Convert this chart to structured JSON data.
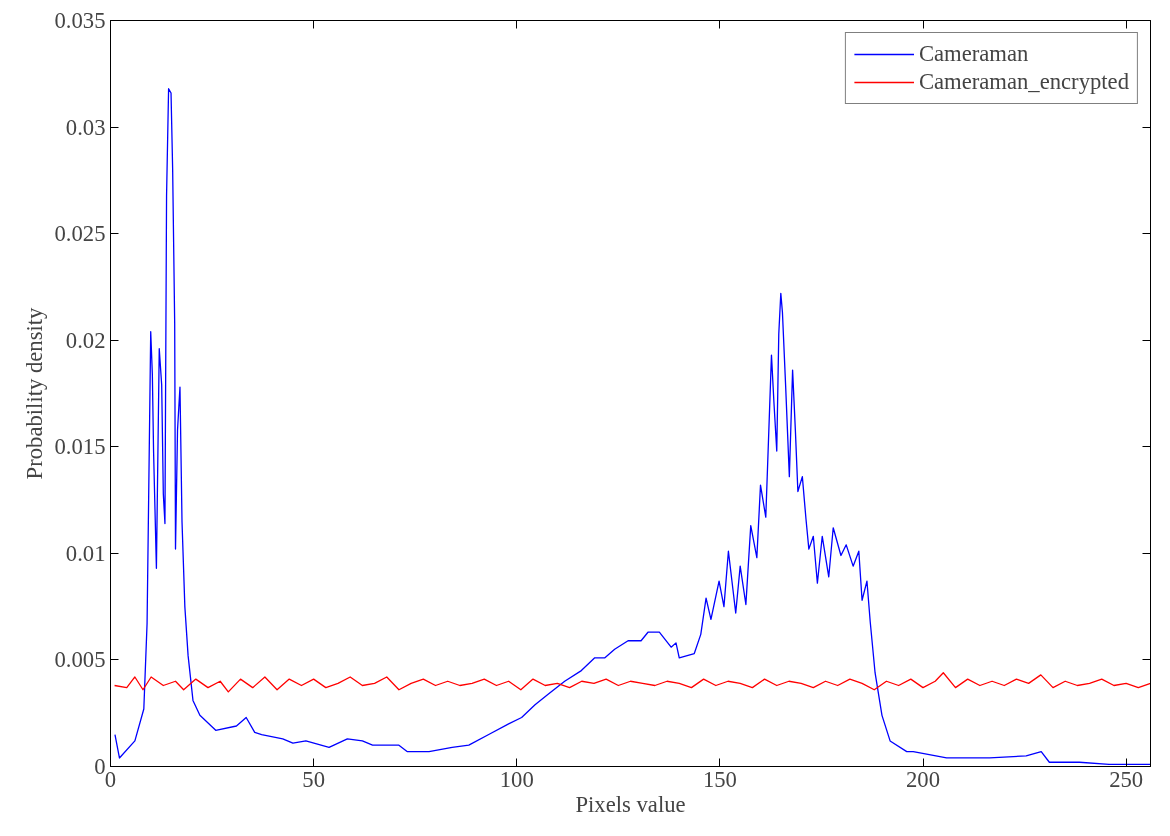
{
  "chart_data": {
    "type": "line",
    "xlabel": "Pixels value",
    "ylabel": "Probability density",
    "xlim": [
      0,
      256
    ],
    "ylim": [
      0,
      0.035
    ],
    "xticks": [
      0,
      50,
      100,
      150,
      200,
      250
    ],
    "yticks": [
      0,
      0.005,
      0.01,
      0.015,
      0.02,
      0.025,
      0.03,
      0.035
    ],
    "grid": false,
    "legend": "top right",
    "marker": "none",
    "line_style": "solid",
    "series": [
      {
        "name": "Cameraman",
        "color": "#0000ff",
        "x": [
          1.1,
          2.2,
          6,
          8.2,
          9,
          9.3,
          9.9,
          10.3,
          10.6,
          11.3,
          12,
          12.6,
          13,
          13.4,
          13.8,
          14.3,
          14.9,
          15.3,
          15.8,
          16,
          16.5,
          17.1,
          17.6,
          18.3,
          19.1,
          20.3,
          22,
          25.9,
          31,
          33.4,
          35.5,
          37.2,
          42.4,
          44.9,
          48.1,
          53.8,
          58.3,
          62,
          64.5,
          71,
          73,
          78.4,
          84.1,
          88.2,
          93.1,
          98,
          101.2,
          104.5,
          107.8,
          111.8,
          115.9,
          119.2,
          121.7,
          124.1,
          127.4,
          130.6,
          132.3,
          135.1,
          138,
          139.2,
          140,
          143.7,
          145.3,
          146.6,
          147.8,
          149.8,
          151,
          152.1,
          153.9,
          155,
          156.4,
          157.6,
          159.1,
          160,
          161.3,
          161.8,
          162.7,
          163.3,
          164,
          164.5,
          165,
          165.4,
          166.2,
          167.1,
          167.9,
          168.6,
          169.2,
          170.3,
          171.2,
          171.9,
          173,
          174,
          175.2,
          176.8,
          177.9,
          179.8,
          181.1,
          182.8,
          184.2,
          185,
          186.2,
          187,
          188.2,
          189.9,
          191.9,
          196,
          197.6,
          205.8,
          216.4,
          225.4,
          229.1,
          231.1,
          238.5,
          245.8,
          256
        ],
        "values": [
          0.0015,
          0.0004,
          0.0012,
          0.0027,
          0.0067,
          0.0112,
          0.0204,
          0.0184,
          0.0148,
          0.0093,
          0.0196,
          0.0179,
          0.0128,
          0.0114,
          0.0268,
          0.0318,
          0.0316,
          0.028,
          0.0208,
          0.0102,
          0.0158,
          0.0178,
          0.0115,
          0.0075,
          0.0052,
          0.0031,
          0.0024,
          0.0017,
          0.0019,
          0.0023,
          0.0016,
          0.0015,
          0.0013,
          0.0011,
          0.0012,
          0.0009,
          0.0013,
          0.0012,
          0.001,
          0.001,
          0.0007,
          0.0007,
          0.0009,
          0.001,
          0.0015,
          0.002,
          0.0023,
          0.0029,
          0.0034,
          0.004,
          0.0045,
          0.0051,
          0.0051,
          0.0055,
          0.0059,
          0.0059,
          0.0063,
          0.0063,
          0.0056,
          0.0058,
          0.0051,
          0.0053,
          0.0062,
          0.0079,
          0.0069,
          0.0087,
          0.0075,
          0.0101,
          0.0072,
          0.0094,
          0.0076,
          0.0113,
          0.0098,
          0.0132,
          0.0117,
          0.0144,
          0.0193,
          0.0171,
          0.0148,
          0.0203,
          0.0222,
          0.0213,
          0.0178,
          0.0136,
          0.0186,
          0.0157,
          0.0129,
          0.0136,
          0.0116,
          0.0102,
          0.0108,
          0.0086,
          0.0108,
          0.0089,
          0.0112,
          0.0099,
          0.0104,
          0.0094,
          0.0101,
          0.0078,
          0.0087,
          0.0068,
          0.0044,
          0.0024,
          0.0012,
          0.0007,
          0.0007,
          0.0004,
          0.0004,
          0.0005,
          0.0007,
          0.0002,
          0.0002,
          0.0001,
          0.0001
        ]
      },
      {
        "name": "Cameraman_encrypted",
        "color": "#ff0000",
        "x": [
          1,
          4,
          6,
          8,
          10,
          13,
          16,
          18,
          21,
          24,
          27,
          29,
          32,
          35,
          38,
          41,
          44,
          47,
          50,
          53,
          56,
          59,
          62,
          65,
          68,
          71,
          74,
          77,
          80,
          83,
          86,
          89,
          92,
          95,
          98,
          101,
          104,
          107,
          110,
          113,
          116,
          119,
          122,
          125,
          128,
          131,
          134,
          137,
          140,
          143,
          146,
          149,
          152,
          155,
          158,
          161,
          164,
          167,
          170,
          173,
          176,
          179,
          182,
          185,
          188,
          191,
          194,
          197,
          200,
          203,
          205,
          208,
          211,
          214,
          217,
          220,
          223,
          226,
          229,
          232,
          235,
          238,
          241,
          244,
          247,
          250,
          253,
          256
        ],
        "values": [
          0.0038,
          0.0037,
          0.0042,
          0.0036,
          0.0042,
          0.0038,
          0.004,
          0.0036,
          0.0041,
          0.0037,
          0.004,
          0.0035,
          0.0041,
          0.0037,
          0.0042,
          0.0036,
          0.0041,
          0.0038,
          0.0041,
          0.0037,
          0.0039,
          0.0042,
          0.0038,
          0.0039,
          0.0042,
          0.0036,
          0.0039,
          0.0041,
          0.0038,
          0.004,
          0.0038,
          0.0039,
          0.0041,
          0.0038,
          0.004,
          0.0036,
          0.0041,
          0.0038,
          0.0039,
          0.0037,
          0.004,
          0.0039,
          0.0041,
          0.0038,
          0.004,
          0.0039,
          0.0038,
          0.004,
          0.0039,
          0.0037,
          0.0041,
          0.0038,
          0.004,
          0.0039,
          0.0037,
          0.0041,
          0.0038,
          0.004,
          0.0039,
          0.0037,
          0.004,
          0.0038,
          0.0041,
          0.0039,
          0.0036,
          0.004,
          0.0038,
          0.0041,
          0.0037,
          0.004,
          0.0044,
          0.0037,
          0.0041,
          0.0038,
          0.004,
          0.0038,
          0.0041,
          0.0039,
          0.0043,
          0.0037,
          0.004,
          0.0038,
          0.0039,
          0.0041,
          0.0038,
          0.0039,
          0.0037,
          0.0039
        ]
      }
    ]
  }
}
